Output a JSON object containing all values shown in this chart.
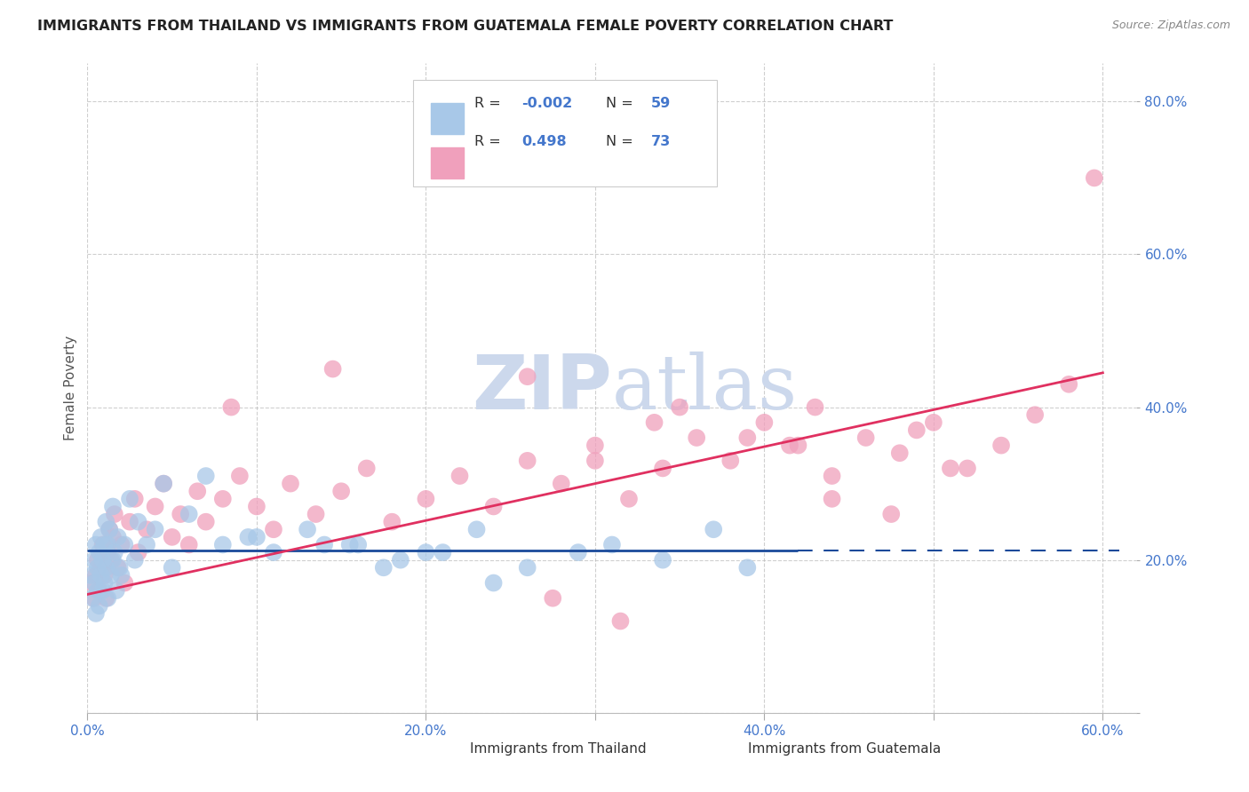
{
  "title": "IMMIGRANTS FROM THAILAND VS IMMIGRANTS FROM GUATEMALA FEMALE POVERTY CORRELATION CHART",
  "source": "Source: ZipAtlas.com",
  "ylabel": "Female Poverty",
  "xlim": [
    0.0,
    0.62
  ],
  "ylim": [
    0.0,
    0.85
  ],
  "xticks": [
    0.0,
    0.1,
    0.2,
    0.3,
    0.4,
    0.5,
    0.6
  ],
  "yticks": [
    0.0,
    0.2,
    0.4,
    0.6,
    0.8
  ],
  "xticklabels": [
    "0.0%",
    "",
    "20.0%",
    "",
    "40.0%",
    "",
    "60.0%"
  ],
  "yticklabels": [
    "",
    "20.0%",
    "40.0%",
    "60.0%",
    "80.0%"
  ],
  "color_thailand": "#a8c8e8",
  "color_guatemala": "#f0a0bc",
  "line_color_thailand": "#1a4a9a",
  "line_color_guatemala": "#e03060",
  "watermark_color": "#ccd8ec",
  "grid_color": "#bbbbbb",
  "background_color": "#ffffff",
  "thailand_x": [
    0.002,
    0.003,
    0.004,
    0.004,
    0.005,
    0.005,
    0.006,
    0.006,
    0.007,
    0.007,
    0.008,
    0.008,
    0.009,
    0.009,
    0.01,
    0.01,
    0.011,
    0.011,
    0.012,
    0.012,
    0.013,
    0.014,
    0.015,
    0.015,
    0.016,
    0.017,
    0.018,
    0.019,
    0.02,
    0.022,
    0.025,
    0.028,
    0.03,
    0.035,
    0.04,
    0.045,
    0.05,
    0.06,
    0.07,
    0.08,
    0.095,
    0.11,
    0.13,
    0.155,
    0.175,
    0.2,
    0.23,
    0.26,
    0.29,
    0.31,
    0.34,
    0.37,
    0.39,
    0.16,
    0.185,
    0.21,
    0.24,
    0.1,
    0.14
  ],
  "thailand_y": [
    0.18,
    0.15,
    0.17,
    0.2,
    0.13,
    0.22,
    0.16,
    0.19,
    0.14,
    0.21,
    0.18,
    0.23,
    0.16,
    0.2,
    0.17,
    0.22,
    0.19,
    0.25,
    0.15,
    0.22,
    0.24,
    0.18,
    0.2,
    0.27,
    0.21,
    0.16,
    0.23,
    0.19,
    0.18,
    0.22,
    0.28,
    0.2,
    0.25,
    0.22,
    0.24,
    0.3,
    0.19,
    0.26,
    0.31,
    0.22,
    0.23,
    0.21,
    0.24,
    0.22,
    0.19,
    0.21,
    0.24,
    0.19,
    0.21,
    0.22,
    0.2,
    0.24,
    0.19,
    0.22,
    0.2,
    0.21,
    0.17,
    0.23,
    0.22
  ],
  "guatemala_x": [
    0.003,
    0.004,
    0.005,
    0.006,
    0.007,
    0.008,
    0.009,
    0.01,
    0.011,
    0.012,
    0.013,
    0.014,
    0.015,
    0.016,
    0.018,
    0.02,
    0.022,
    0.025,
    0.028,
    0.03,
    0.035,
    0.04,
    0.045,
    0.05,
    0.055,
    0.06,
    0.065,
    0.07,
    0.08,
    0.09,
    0.1,
    0.11,
    0.12,
    0.135,
    0.15,
    0.165,
    0.18,
    0.2,
    0.22,
    0.24,
    0.26,
    0.28,
    0.3,
    0.32,
    0.34,
    0.36,
    0.38,
    0.4,
    0.42,
    0.44,
    0.46,
    0.48,
    0.5,
    0.52,
    0.54,
    0.56,
    0.58,
    0.595,
    0.44,
    0.35,
    0.3,
    0.26,
    0.49,
    0.43,
    0.39,
    0.335,
    0.415,
    0.475,
    0.51,
    0.275,
    0.145,
    0.085,
    0.315
  ],
  "guatemala_y": [
    0.17,
    0.15,
    0.18,
    0.2,
    0.16,
    0.19,
    0.22,
    0.18,
    0.15,
    0.21,
    0.24,
    0.2,
    0.23,
    0.26,
    0.19,
    0.22,
    0.17,
    0.25,
    0.28,
    0.21,
    0.24,
    0.27,
    0.3,
    0.23,
    0.26,
    0.22,
    0.29,
    0.25,
    0.28,
    0.31,
    0.27,
    0.24,
    0.3,
    0.26,
    0.29,
    0.32,
    0.25,
    0.28,
    0.31,
    0.27,
    0.33,
    0.3,
    0.35,
    0.28,
    0.32,
    0.36,
    0.33,
    0.38,
    0.35,
    0.31,
    0.36,
    0.34,
    0.38,
    0.32,
    0.35,
    0.39,
    0.43,
    0.7,
    0.28,
    0.4,
    0.33,
    0.44,
    0.37,
    0.4,
    0.36,
    0.38,
    0.35,
    0.26,
    0.32,
    0.15,
    0.45,
    0.4,
    0.12
  ],
  "th_line_solid_end": 0.42,
  "th_line_y": 0.212,
  "gt_line_x0": 0.0,
  "gt_line_x1": 0.6,
  "gt_line_y0": 0.155,
  "gt_line_y1": 0.445
}
